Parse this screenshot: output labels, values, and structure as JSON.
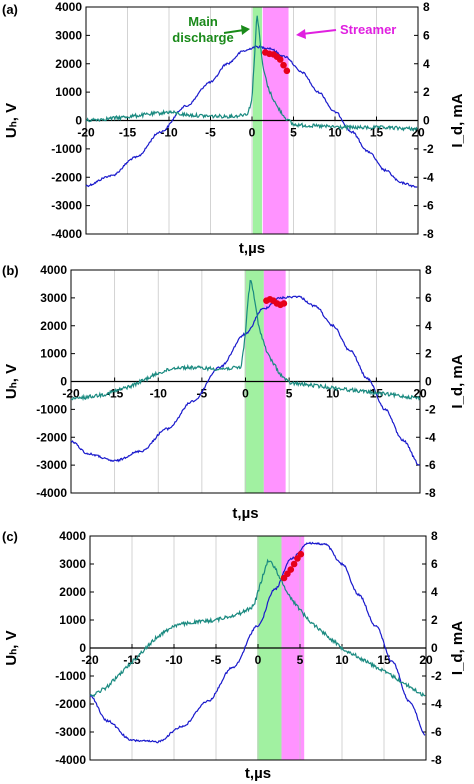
{
  "chart_data": [
    {
      "type": "line",
      "panel_label": "(a)",
      "xlabel": "t,µs",
      "ylabel_left": "Uₕ, V",
      "ylabel_right": "I_d, mA",
      "xlim": [
        -20,
        20
      ],
      "ylim_left": [
        -4000,
        4000
      ],
      "ylim_right": [
        -8,
        8
      ],
      "xticks": [
        -20,
        -15,
        -10,
        -5,
        0,
        5,
        10,
        15,
        20
      ],
      "yticks_left": [
        -4000,
        -3000,
        -2000,
        -1000,
        0,
        1000,
        2000,
        3000,
        4000
      ],
      "yticks_right": [
        -8,
        -6,
        -4,
        -2,
        0,
        2,
        4,
        6,
        8
      ],
      "grid": "vertical",
      "bands": [
        {
          "label": "Main discharge",
          "x": [
            0.1,
            1.2
          ],
          "color": "#90ee90"
        },
        {
          "label": "Streamer",
          "x": [
            1.3,
            4.4
          ],
          "color": "#ff80ff"
        }
      ],
      "annotations": [
        {
          "text": "Main\ndischarge",
          "color": "#1a8a1a"
        },
        {
          "text": "Streamer",
          "color": "#e020e0"
        }
      ],
      "series": [
        {
          "color": "#1a1acc",
          "axis": "left",
          "shape": "smooth",
          "points": [
            [
              -20,
              -2300
            ],
            [
              -17,
              -1950
            ],
            [
              -14,
              -1300
            ],
            [
              -11,
              -400
            ],
            [
              -8,
              500
            ],
            [
              -5,
              1350
            ],
            [
              -3,
              2000
            ],
            [
              -1,
              2450
            ],
            [
              0.5,
              2600
            ],
            [
              2,
              2550
            ],
            [
              4,
              2250
            ],
            [
              6,
              1700
            ],
            [
              8,
              1000
            ],
            [
              10,
              300
            ],
            [
              12,
              -400
            ],
            [
              14,
              -1100
            ],
            [
              16,
              -1750
            ],
            [
              18,
              -2200
            ],
            [
              20,
              -2350
            ]
          ]
        },
        {
          "color": "#1a8a80",
          "axis": "right",
          "shape": "linear",
          "points": [
            [
              -20,
              0.0
            ],
            [
              -16,
              0.2
            ],
            [
              -13,
              0.4
            ],
            [
              -10,
              0.6
            ],
            [
              -8,
              0.4
            ],
            [
              -5,
              0.3
            ],
            [
              -2,
              0.3
            ],
            [
              -0.5,
              0.5
            ],
            [
              0,
              1.5
            ],
            [
              0.3,
              4.5
            ],
            [
              0.6,
              7.6
            ],
            [
              0.9,
              6.0
            ],
            [
              1.3,
              3.8
            ],
            [
              2,
              2.2
            ],
            [
              3,
              1.0
            ],
            [
              4,
              0.2
            ],
            [
              5,
              -0.3
            ],
            [
              8,
              -0.4
            ],
            [
              12,
              -0.5
            ],
            [
              16,
              -0.5
            ],
            [
              20,
              -0.6
            ]
          ]
        },
        {
          "color": "#e6001a",
          "axis": "left",
          "shape": "markers",
          "points": [
            [
              1.6,
              2400
            ],
            [
              2.1,
              2350
            ],
            [
              2.6,
              2330
            ],
            [
              3.0,
              2250
            ],
            [
              3.4,
              2150
            ],
            [
              3.8,
              1950
            ],
            [
              4.2,
              1750
            ]
          ]
        }
      ]
    },
    {
      "type": "line",
      "panel_label": "(b)",
      "xlabel": "t,µs",
      "ylabel_left": "Uₕ, V",
      "ylabel_right": "I_d, mA",
      "xlim": [
        -20,
        20
      ],
      "ylim_left": [
        -4000,
        4000
      ],
      "ylim_right": [
        -8,
        8
      ],
      "xticks": [
        -20,
        -15,
        -10,
        -5,
        0,
        5,
        10,
        15,
        20
      ],
      "yticks_left": [
        -4000,
        -3000,
        -2000,
        -1000,
        0,
        1000,
        2000,
        3000,
        4000
      ],
      "yticks_right": [
        -8,
        -6,
        -4,
        -2,
        0,
        2,
        4,
        6,
        8
      ],
      "grid": "vertical",
      "bands": [
        {
          "label": "Main discharge",
          "x": [
            -0.1,
            2.1
          ],
          "color": "#90ee90"
        },
        {
          "label": "Streamer",
          "x": [
            2.1,
            4.6
          ],
          "color": "#ff80ff"
        }
      ],
      "series": [
        {
          "color": "#1a1acc",
          "axis": "left",
          "shape": "smooth",
          "points": [
            [
              -20,
              -2150
            ],
            [
              -18,
              -2600
            ],
            [
              -15,
              -2850
            ],
            [
              -12,
              -2500
            ],
            [
              -9,
              -1700
            ],
            [
              -6,
              -700
            ],
            [
              -3,
              500
            ],
            [
              0,
              1700
            ],
            [
              2,
              2600
            ],
            [
              4,
              3000
            ],
            [
              6,
              3050
            ],
            [
              8,
              2700
            ],
            [
              10,
              2000
            ],
            [
              12,
              1100
            ],
            [
              14,
              100
            ],
            [
              16,
              -1000
            ],
            [
              18,
              -2100
            ],
            [
              20,
              -3000
            ]
          ]
        },
        {
          "color": "#1a8a80",
          "axis": "right",
          "shape": "linear",
          "points": [
            [
              -20,
              -1.3
            ],
            [
              -16,
              -0.9
            ],
            [
              -13,
              -0.3
            ],
            [
              -10,
              0.6
            ],
            [
              -8,
              1.0
            ],
            [
              -6,
              1.0
            ],
            [
              -3,
              0.9
            ],
            [
              -0.5,
              1.0
            ],
            [
              0,
              3.5
            ],
            [
              0.3,
              6.0
            ],
            [
              0.6,
              7.4
            ],
            [
              1.0,
              6.0
            ],
            [
              1.5,
              4.0
            ],
            [
              2.5,
              2.0
            ],
            [
              4,
              0.5
            ],
            [
              5,
              -0.1
            ],
            [
              8,
              -0.3
            ],
            [
              12,
              -0.6
            ],
            [
              16,
              -0.9
            ],
            [
              20,
              -1.2
            ]
          ]
        },
        {
          "color": "#e6001a",
          "axis": "left",
          "shape": "markers",
          "points": [
            [
              2.4,
              2900
            ],
            [
              2.8,
              2950
            ],
            [
              3.2,
              2900
            ],
            [
              3.6,
              2800
            ],
            [
              4.0,
              2750
            ],
            [
              4.4,
              2800
            ]
          ]
        }
      ]
    },
    {
      "type": "line",
      "panel_label": "(c)",
      "xlabel": "t,µs",
      "ylabel_left": "Uₕ, V",
      "ylabel_right": "I_d, mA",
      "xlim": [
        -20,
        20
      ],
      "ylim_left": [
        -4000,
        4000
      ],
      "ylim_right": [
        -8,
        8
      ],
      "xticks": [
        -20,
        -15,
        -10,
        -5,
        0,
        5,
        10,
        15,
        20
      ],
      "yticks_left": [
        -4000,
        -3000,
        -2000,
        -1000,
        0,
        1000,
        2000,
        3000,
        4000
      ],
      "yticks_right": [
        -8,
        -6,
        -4,
        -2,
        0,
        2,
        4,
        6,
        8
      ],
      "grid": "vertical",
      "bands": [
        {
          "label": "Main discharge",
          "x": [
            -0.1,
            2.8
          ],
          "color": "#90ee90"
        },
        {
          "label": "Streamer",
          "x": [
            2.8,
            5.5
          ],
          "color": "#ff80ff"
        }
      ],
      "series": [
        {
          "color": "#1a1acc",
          "axis": "left",
          "shape": "smooth",
          "points": [
            [
              -20,
              -1700
            ],
            [
              -18,
              -2600
            ],
            [
              -15,
              -3300
            ],
            [
              -12,
              -3350
            ],
            [
              -9,
              -2800
            ],
            [
              -6,
              -1900
            ],
            [
              -3,
              -700
            ],
            [
              0,
              800
            ],
            [
              2,
              2100
            ],
            [
              4,
              3200
            ],
            [
              6,
              3750
            ],
            [
              8,
              3700
            ],
            [
              10,
              3000
            ],
            [
              12,
              1900
            ],
            [
              14,
              800
            ],
            [
              16,
              -500
            ],
            [
              18,
              -1900
            ],
            [
              20,
              -3100
            ]
          ]
        },
        {
          "color": "#1a8a80",
          "axis": "right",
          "shape": "linear",
          "points": [
            [
              -20,
              -3.5
            ],
            [
              -18,
              -2.8
            ],
            [
              -15,
              -1.0
            ],
            [
              -12,
              0.8
            ],
            [
              -10,
              1.6
            ],
            [
              -8,
              1.8
            ],
            [
              -5,
              2.0
            ],
            [
              -2,
              2.5
            ],
            [
              -0.5,
              3.0
            ],
            [
              0.5,
              5.0
            ],
            [
              1.2,
              6.3
            ],
            [
              2,
              5.8
            ],
            [
              3,
              4.5
            ],
            [
              4,
              3.5
            ],
            [
              6,
              2.0
            ],
            [
              8,
              1.0
            ],
            [
              10,
              0.0
            ],
            [
              13,
              -1.0
            ],
            [
              16,
              -2.0
            ],
            [
              20,
              -3.5
            ]
          ]
        },
        {
          "color": "#e6001a",
          "axis": "left",
          "shape": "markers",
          "points": [
            [
              3.1,
              2500
            ],
            [
              3.5,
              2650
            ],
            [
              3.9,
              2800
            ],
            [
              4.3,
              3000
            ],
            [
              4.7,
              3200
            ],
            [
              5.1,
              3350
            ]
          ]
        }
      ]
    }
  ]
}
